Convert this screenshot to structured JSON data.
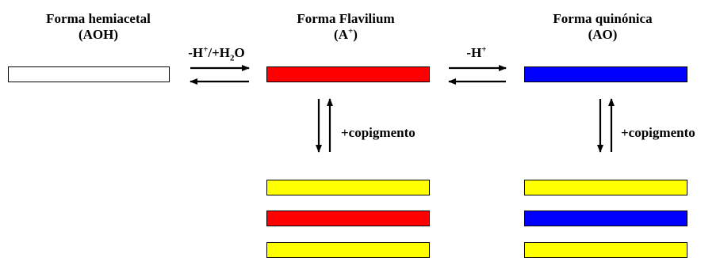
{
  "forms": {
    "hemiacetal": {
      "name": "Forma hemiacetal",
      "abbr": "(AOH)"
    },
    "flavilium": {
      "name": "Forma Flavilium",
      "abbr_pre": "(A",
      "abbr_sup": "+",
      "abbr_post": ")"
    },
    "quinonica": {
      "name": "Forma quinónica",
      "abbr": "(AO)"
    }
  },
  "reactions": {
    "r1": {
      "p1": "-H",
      "sup": "+",
      "p2": "/+H",
      "sub": "2",
      "p3": "O"
    },
    "r2": {
      "p1": "-H",
      "sup": "+"
    },
    "copig_left": "+copigmento",
    "copig_right": "+copigmento"
  },
  "colors": {
    "hemiacetal": "#ffffff",
    "flavilium": "#ff0000",
    "quinonica": "#0000ff",
    "copigment": "#ffff00"
  }
}
